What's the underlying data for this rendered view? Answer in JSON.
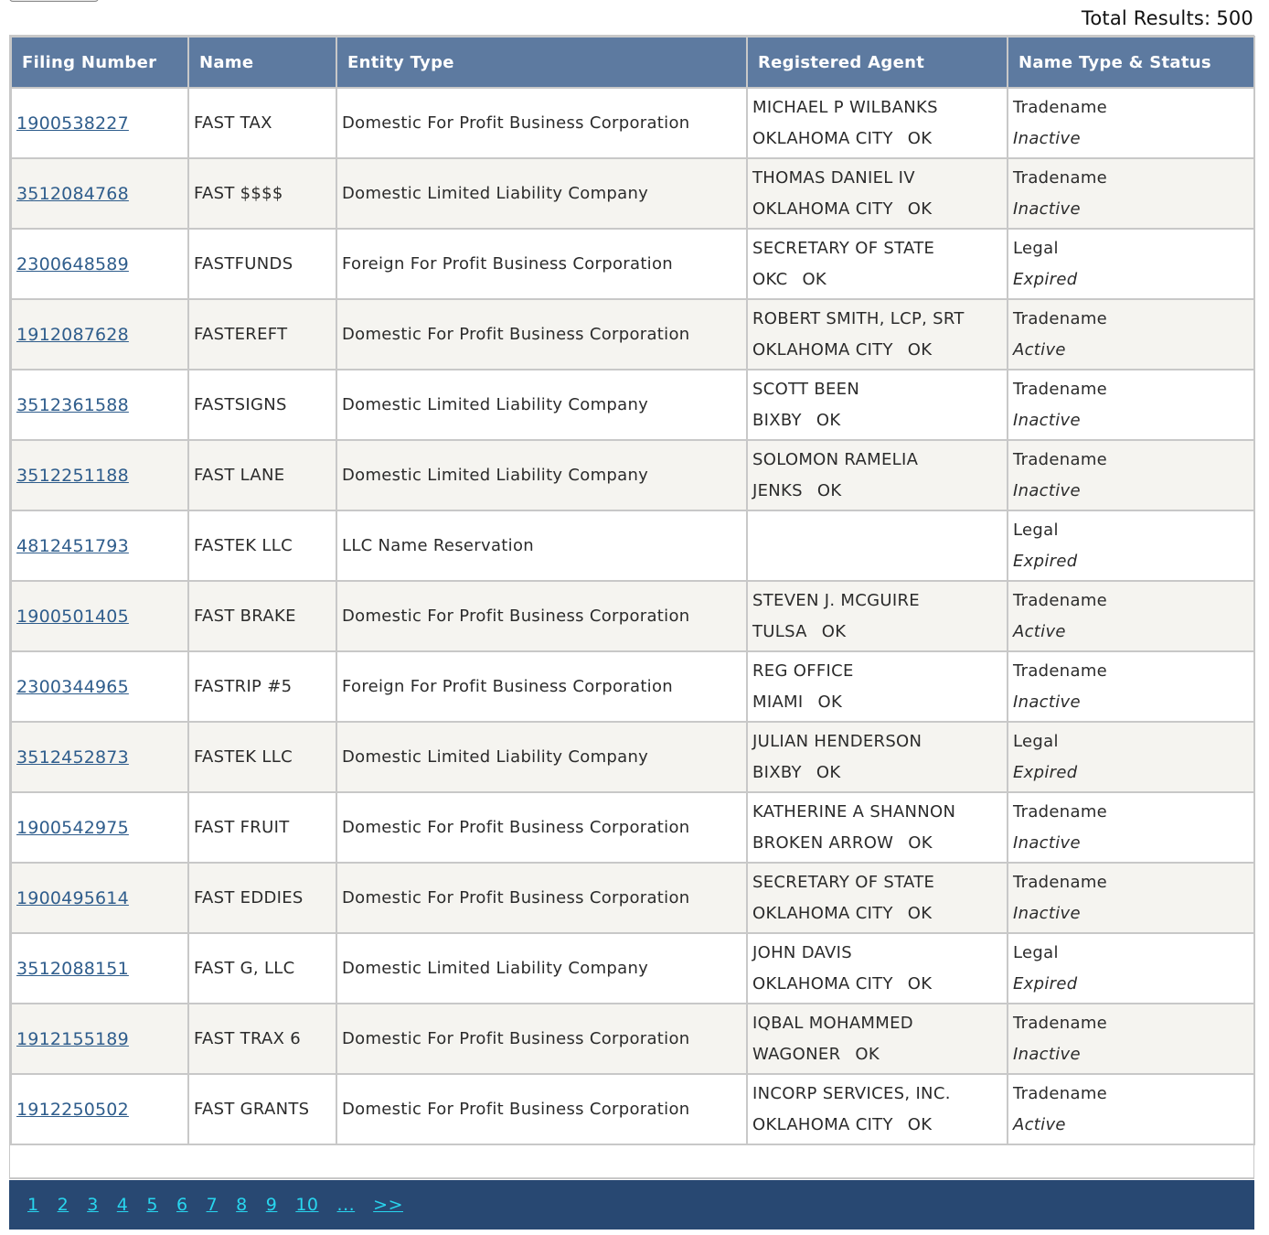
{
  "total_results": {
    "label": "Total Results:",
    "value": "500"
  },
  "columns": [
    "Filing Number",
    "Name",
    "Entity Type",
    "Registered Agent",
    "Name Type & Status"
  ],
  "rows": [
    {
      "filing_number": "1900538227",
      "name": "FAST TAX",
      "entity_type": "Domestic For Profit Business Corporation",
      "agent_name": "MICHAEL P WILBANKS",
      "agent_city": "OKLAHOMA CITY",
      "agent_state": "OK",
      "name_type": "Tradename",
      "status": "Inactive"
    },
    {
      "filing_number": "3512084768",
      "name": "FAST $$$$",
      "entity_type": "Domestic Limited Liability Company",
      "agent_name": "THOMAS DANIEL IV",
      "agent_city": "OKLAHOMA CITY",
      "agent_state": "OK",
      "name_type": "Tradename",
      "status": "Inactive"
    },
    {
      "filing_number": "2300648589",
      "name": "FASTFUNDS",
      "entity_type": "Foreign For Profit Business Corporation",
      "agent_name": "SECRETARY OF STATE",
      "agent_city": "OKC",
      "agent_state": "OK",
      "name_type": "Legal",
      "status": "Expired"
    },
    {
      "filing_number": "1912087628",
      "name": "FASTEREFT",
      "entity_type": "Domestic For Profit Business Corporation",
      "agent_name": "ROBERT SMITH, LCP, SRT",
      "agent_city": "OKLAHOMA CITY",
      "agent_state": "OK",
      "name_type": "Tradename",
      "status": "Active"
    },
    {
      "filing_number": "3512361588",
      "name": "FASTSIGNS",
      "entity_type": "Domestic Limited Liability Company",
      "agent_name": "SCOTT BEEN",
      "agent_city": "BIXBY",
      "agent_state": "OK",
      "name_type": "Tradename",
      "status": "Inactive"
    },
    {
      "filing_number": "3512251188",
      "name": "FAST LANE",
      "entity_type": "Domestic Limited Liability Company",
      "agent_name": "SOLOMON RAMELIA",
      "agent_city": "JENKS",
      "agent_state": "OK",
      "name_type": "Tradename",
      "status": "Inactive"
    },
    {
      "filing_number": "4812451793",
      "name": "FASTEK LLC",
      "entity_type": "LLC Name Reservation",
      "agent_name": "",
      "agent_city": "",
      "agent_state": "",
      "name_type": "Legal",
      "status": "Expired"
    },
    {
      "filing_number": "1900501405",
      "name": "FAST BRAKE",
      "entity_type": "Domestic For Profit Business Corporation",
      "agent_name": "STEVEN J. MCGUIRE",
      "agent_city": "TULSA",
      "agent_state": "OK",
      "name_type": "Tradename",
      "status": "Active"
    },
    {
      "filing_number": "2300344965",
      "name": "FASTRIP #5",
      "entity_type": "Foreign For Profit Business Corporation",
      "agent_name": "REG OFFICE",
      "agent_city": "MIAMI",
      "agent_state": "OK",
      "name_type": "Tradename",
      "status": "Inactive"
    },
    {
      "filing_number": "3512452873",
      "name": "FASTEK LLC",
      "entity_type": "Domestic Limited Liability Company",
      "agent_name": "JULIAN HENDERSON",
      "agent_city": "BIXBY",
      "agent_state": "OK",
      "name_type": "Legal",
      "status": "Expired"
    },
    {
      "filing_number": "1900542975",
      "name": "FAST FRUIT",
      "entity_type": "Domestic For Profit Business Corporation",
      "agent_name": "KATHERINE A SHANNON",
      "agent_city": "BROKEN ARROW",
      "agent_state": "OK",
      "name_type": "Tradename",
      "status": "Inactive"
    },
    {
      "filing_number": "1900495614",
      "name": "FAST EDDIES",
      "entity_type": "Domestic For Profit Business Corporation",
      "agent_name": "SECRETARY OF STATE",
      "agent_city": "OKLAHOMA CITY",
      "agent_state": "OK",
      "name_type": "Tradename",
      "status": "Inactive"
    },
    {
      "filing_number": "3512088151",
      "name": "FAST G, LLC",
      "entity_type": "Domestic Limited Liability Company",
      "agent_name": "JOHN DAVIS",
      "agent_city": "OKLAHOMA CITY",
      "agent_state": "OK",
      "name_type": "Legal",
      "status": "Expired"
    },
    {
      "filing_number": "1912155189",
      "name": "FAST TRAX 6",
      "entity_type": "Domestic For Profit Business Corporation",
      "agent_name": "IQBAL MOHAMMED",
      "agent_city": "WAGONER",
      "agent_state": "OK",
      "name_type": "Tradename",
      "status": "Inactive"
    },
    {
      "filing_number": "1912250502",
      "name": "FAST GRANTS",
      "entity_type": "Domestic For Profit Business Corporation",
      "agent_name": "INCORP SERVICES, INC.",
      "agent_city": "OKLAHOMA CITY",
      "agent_state": "OK",
      "name_type": "Tradename",
      "status": "Active"
    }
  ],
  "pagination": {
    "pages": [
      "1",
      "2",
      "3",
      "4",
      "5",
      "6",
      "7",
      "8",
      "9",
      "10"
    ],
    "ellipsis": "...",
    "next": ">>"
  },
  "colors": {
    "header_bg": "#5d7aa0",
    "alt_row_bg": "#f5f4f0",
    "link": "#2f5d8c",
    "pager_bg": "#284872",
    "pager_link": "#28d6ef"
  }
}
